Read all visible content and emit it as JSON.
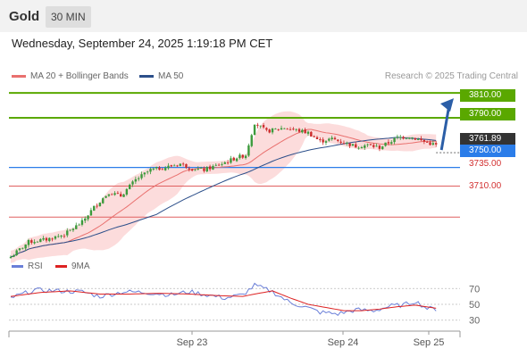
{
  "header": {
    "title": "Gold",
    "timeframe": "30 MIN"
  },
  "datetime": "Wednesday, September 24, 2025 1:19:18 PM CET",
  "legend": {
    "ma20": "MA 20 + Bollinger Bands",
    "ma50": "MA 50",
    "rsi": "RSI",
    "ma9": "9MA"
  },
  "credit": "Research © 2025 Trading Central",
  "colors": {
    "up": "#3c9a3c",
    "down": "#cc2b2b",
    "ma20": "#e9706e",
    "ma50": "#2c4f8a",
    "band": "#fcd6d6",
    "resistance": "#5aa800",
    "pivot": "#2b7de9",
    "support": "#e06060",
    "rsi": "#6a7fd8",
    "ma9": "#dd2222",
    "arrow": "#2b5ea7"
  },
  "price_labels": {
    "r2": "3810.00",
    "r1": "3790.00",
    "current": "3761.89",
    "pivot": "3750.00",
    "s1": "3735.00",
    "s2": "3710.00"
  },
  "rsi_ticks": [
    "70",
    "50",
    "30"
  ],
  "x_labels": [
    "Sep 23",
    "Sep 24",
    "Sep 25"
  ],
  "chart_data": {
    "type": "candlestick",
    "y_range": [
      3680,
      3818
    ],
    "levels": [
      {
        "name": "resistance 2",
        "value": 3810.0
      },
      {
        "name": "resistance 1",
        "value": 3790.0
      },
      {
        "name": "pivot",
        "value": 3750.0
      },
      {
        "name": "support 1",
        "value": 3735.0
      },
      {
        "name": "support 2",
        "value": 3710.0
      }
    ],
    "last_price": 3761.89,
    "close_anchors": [
      [
        0,
        3678
      ],
      [
        6,
        3690
      ],
      [
        12,
        3692
      ],
      [
        18,
        3696
      ],
      [
        24,
        3706
      ],
      [
        28,
        3718
      ],
      [
        33,
        3730
      ],
      [
        37,
        3727
      ],
      [
        42,
        3740
      ],
      [
        47,
        3748
      ],
      [
        52,
        3750
      ],
      [
        57,
        3753
      ],
      [
        61,
        3749
      ],
      [
        65,
        3748
      ],
      [
        71,
        3753
      ],
      [
        76,
        3758
      ],
      [
        79,
        3760
      ],
      [
        82,
        3786
      ],
      [
        86,
        3779
      ],
      [
        92,
        3782
      ],
      [
        100,
        3778
      ],
      [
        104,
        3771
      ],
      [
        108,
        3773
      ],
      [
        116,
        3767
      ],
      [
        120,
        3768
      ],
      [
        124,
        3766
      ],
      [
        130,
        3774
      ],
      [
        134,
        3775
      ],
      [
        140,
        3770
      ],
      [
        143,
        3768
      ]
    ],
    "rsi": {
      "ticks": [
        70,
        50,
        30
      ],
      "range": [
        15,
        85
      ],
      "rsi_anchors": [
        [
          0,
          58
        ],
        [
          8,
          68
        ],
        [
          16,
          67
        ],
        [
          24,
          66
        ],
        [
          30,
          60
        ],
        [
          38,
          66
        ],
        [
          46,
          65
        ],
        [
          54,
          62
        ],
        [
          60,
          66
        ],
        [
          66,
          62
        ],
        [
          72,
          58
        ],
        [
          78,
          62
        ],
        [
          82,
          74
        ],
        [
          88,
          66
        ],
        [
          94,
          52
        ],
        [
          98,
          48
        ],
        [
          104,
          40
        ],
        [
          110,
          38
        ],
        [
          116,
          43
        ],
        [
          122,
          42
        ],
        [
          128,
          48
        ],
        [
          132,
          49
        ],
        [
          136,
          54
        ],
        [
          140,
          45
        ],
        [
          143,
          44
        ]
      ],
      "ma9_anchors": [
        [
          0,
          60
        ],
        [
          10,
          65
        ],
        [
          20,
          67
        ],
        [
          30,
          63
        ],
        [
          40,
          63
        ],
        [
          50,
          64
        ],
        [
          60,
          63
        ],
        [
          70,
          61
        ],
        [
          78,
          60
        ],
        [
          82,
          63
        ],
        [
          88,
          67
        ],
        [
          94,
          58
        ],
        [
          100,
          50
        ],
        [
          106,
          46
        ],
        [
          112,
          42
        ],
        [
          118,
          42
        ],
        [
          124,
          44
        ],
        [
          130,
          47
        ],
        [
          136,
          49
        ],
        [
          143,
          45
        ]
      ]
    }
  }
}
